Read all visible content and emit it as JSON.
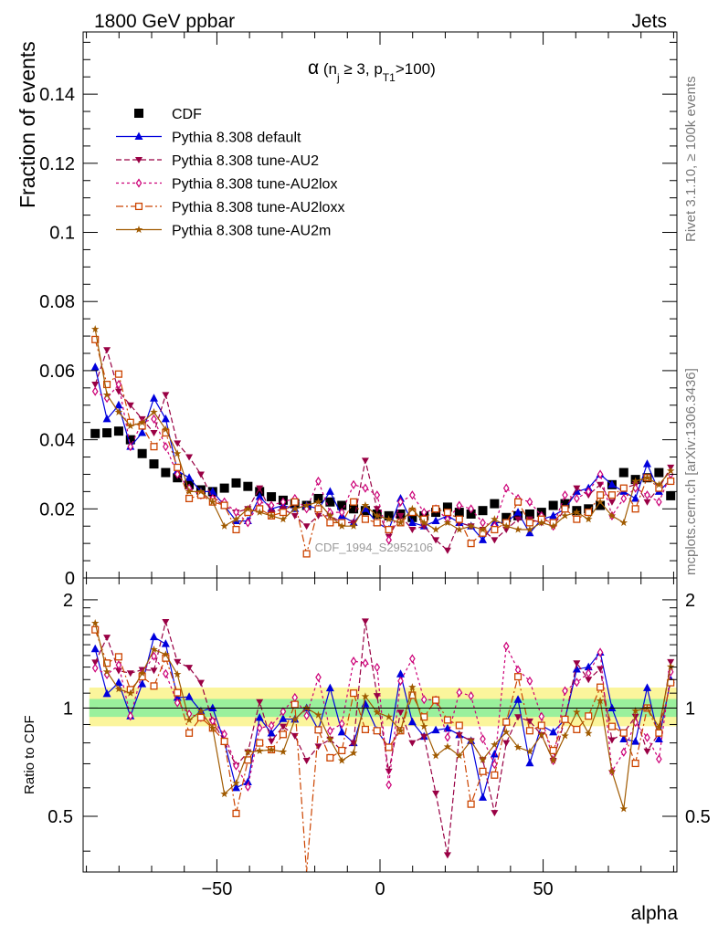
{
  "header": {
    "left": "1800 GeV ppbar",
    "right": "Jets"
  },
  "side": {
    "rivet": "Rivet 3.1.10, ≥ 100k events",
    "mcplots": "mcplots.cern.ch [arXiv:1306.3436]"
  },
  "chart_data": {
    "type": "line",
    "title_parts": {
      "alpha": "α",
      "open": " (n",
      "sub_j": "j",
      "geq": " ≥ 3, p",
      "sub_t1": "T1",
      "close": ">100)"
    },
    "watermark": "CDF_1994_S2952106",
    "xlabel": "alpha",
    "ylabel_top": "Fraction of events",
    "ylabel_bottom": "Ratio to CDF",
    "xlim": [
      -91,
      91
    ],
    "ylim_top": [
      0,
      0.158
    ],
    "ylim_bottom": [
      0.35,
      2.3
    ],
    "x_ticks": [
      -50,
      0,
      50
    ],
    "x_tick_labels": [
      "−50",
      "0",
      "50"
    ],
    "y_ticks_top": [
      0,
      0.02,
      0.04,
      0.06,
      0.08,
      0.1,
      0.12,
      0.14
    ],
    "y_tick_labels_top": [
      "0",
      "0.02",
      "0.04",
      "0.06",
      "0.08",
      "0.1",
      "0.12",
      "0.14"
    ],
    "y_ticks_bottom": [
      0.5,
      1,
      2
    ],
    "y_tick_labels_bottom": [
      "0.5",
      "1",
      "2"
    ],
    "legend_position": "top-left",
    "x": [
      -87.3,
      -83.7,
      -80.1,
      -76.5,
      -72.9,
      -69.3,
      -65.7,
      -62.1,
      -58.5,
      -54.9,
      -51.3,
      -47.7,
      -44.1,
      -40.5,
      -36.9,
      -33.3,
      -29.7,
      -26.1,
      -22.5,
      -18.9,
      -15.3,
      -11.7,
      -8.1,
      -4.5,
      -0.9,
      2.7,
      6.3,
      9.9,
      13.5,
      17.1,
      20.7,
      24.3,
      27.9,
      31.5,
      35.1,
      38.7,
      42.3,
      45.9,
      49.5,
      53.1,
      56.7,
      60.3,
      63.9,
      67.5,
      71.1,
      74.7,
      78.3,
      81.9,
      85.5,
      89.1
    ],
    "series": [
      {
        "name": "CDF",
        "color": "#000000",
        "marker": "square",
        "dash": "none",
        "values": [
          0.0418,
          0.042,
          0.0425,
          0.04,
          0.036,
          0.033,
          0.0305,
          0.029,
          0.027,
          0.0255,
          0.025,
          0.026,
          0.0275,
          0.0265,
          0.025,
          0.0235,
          0.0225,
          0.0215,
          0.021,
          0.023,
          0.022,
          0.021,
          0.02,
          0.0195,
          0.0185,
          0.018,
          0.0185,
          0.0175,
          0.018,
          0.019,
          0.0205,
          0.019,
          0.0185,
          0.0195,
          0.0215,
          0.0175,
          0.018,
          0.0185,
          0.019,
          0.021,
          0.0215,
          0.0195,
          0.02,
          0.021,
          0.027,
          0.0305,
          0.0285,
          0.029,
          0.0305,
          0.0238
        ]
      },
      {
        "name": "Pythia 8.308 default",
        "color": "#0000dd",
        "marker": "triangle-up",
        "dash": "none",
        "values": [
          0.061,
          0.046,
          0.05,
          0.038,
          0.042,
          0.052,
          0.046,
          0.031,
          0.029,
          0.025,
          0.025,
          0.021,
          0.0165,
          0.0165,
          0.0235,
          0.02,
          0.021,
          0.02,
          0.021,
          0.02,
          0.025,
          0.018,
          0.016,
          0.02,
          0.016,
          0.014,
          0.023,
          0.016,
          0.015,
          0.0165,
          0.018,
          0.016,
          0.015,
          0.011,
          0.016,
          0.016,
          0.019,
          0.013,
          0.017,
          0.018,
          0.02,
          0.025,
          0.026,
          0.03,
          0.027,
          0.025,
          0.023,
          0.033,
          0.025,
          0.0285
        ]
      },
      {
        "name": "Pythia 8.308 tune-AU2",
        "color": "#990044",
        "marker": "triangle-down",
        "dash": "6,3",
        "values": [
          0.056,
          0.066,
          0.054,
          0.05,
          0.046,
          0.042,
          0.053,
          0.039,
          0.035,
          0.03,
          0.023,
          0.021,
          0.019,
          0.02,
          0.026,
          0.019,
          0.02,
          0.018,
          0.015,
          0.018,
          0.018,
          0.016,
          0.016,
          0.034,
          0.02,
          0.012,
          0.018,
          0.014,
          0.015,
          0.011,
          0.008,
          0.016,
          0.015,
          0.014,
          0.011,
          0.014,
          0.017,
          0.017,
          0.016,
          0.015,
          0.02,
          0.026,
          0.024,
          0.027,
          0.022,
          0.026,
          0.027,
          0.022,
          0.026,
          0.032
        ]
      },
      {
        "name": "Pythia 8.308 tune-AU2lox",
        "color": "#cc0077",
        "marker": "diamond-open",
        "dash": "3,3",
        "values": [
          0.054,
          0.052,
          0.056,
          0.038,
          0.045,
          0.046,
          0.038,
          0.03,
          0.026,
          0.024,
          0.023,
          0.022,
          0.019,
          0.016,
          0.022,
          0.021,
          0.022,
          0.023,
          0.02,
          0.028,
          0.019,
          0.019,
          0.027,
          0.026,
          0.024,
          0.011,
          0.022,
          0.024,
          0.019,
          0.02,
          0.017,
          0.021,
          0.02,
          0.016,
          0.015,
          0.026,
          0.023,
          0.022,
          0.018,
          0.015,
          0.024,
          0.023,
          0.025,
          0.03,
          0.018,
          0.023,
          0.026,
          0.024,
          0.022,
          0.03
        ]
      },
      {
        "name": "Pythia 8.308 tune-AU2loxx",
        "color": "#cc4400",
        "marker": "square-open",
        "dash": "8,3,2,3",
        "values": [
          0.069,
          0.056,
          0.059,
          0.045,
          0.044,
          0.038,
          0.042,
          0.032,
          0.023,
          0.024,
          0.022,
          0.021,
          0.014,
          0.019,
          0.02,
          0.018,
          0.019,
          0.022,
          0.007,
          0.02,
          0.016,
          0.016,
          0.022,
          0.017,
          0.016,
          0.014,
          0.016,
          0.019,
          0.017,
          0.02,
          0.019,
          0.017,
          0.01,
          0.013,
          0.014,
          0.016,
          0.022,
          0.016,
          0.017,
          0.016,
          0.02,
          0.017,
          0.019,
          0.024,
          0.024,
          0.026,
          0.02,
          0.029,
          0.026,
          0.028
        ]
      },
      {
        "name": "Pythia 8.308 tune-AU2m",
        "color": "#a05a00",
        "marker": "star",
        "dash": "none",
        "values": [
          0.072,
          0.053,
          0.048,
          0.044,
          0.045,
          0.048,
          0.043,
          0.036,
          0.025,
          0.025,
          0.022,
          0.015,
          0.017,
          0.02,
          0.019,
          0.018,
          0.017,
          0.02,
          0.021,
          0.022,
          0.018,
          0.015,
          0.015,
          0.021,
          0.018,
          0.017,
          0.016,
          0.02,
          0.016,
          0.014,
          0.016,
          0.014,
          0.015,
          0.014,
          0.017,
          0.015,
          0.014,
          0.014,
          0.016,
          0.015,
          0.018,
          0.019,
          0.017,
          0.022,
          0.018,
          0.016,
          0.028,
          0.029,
          0.027,
          0.031
        ]
      }
    ]
  }
}
